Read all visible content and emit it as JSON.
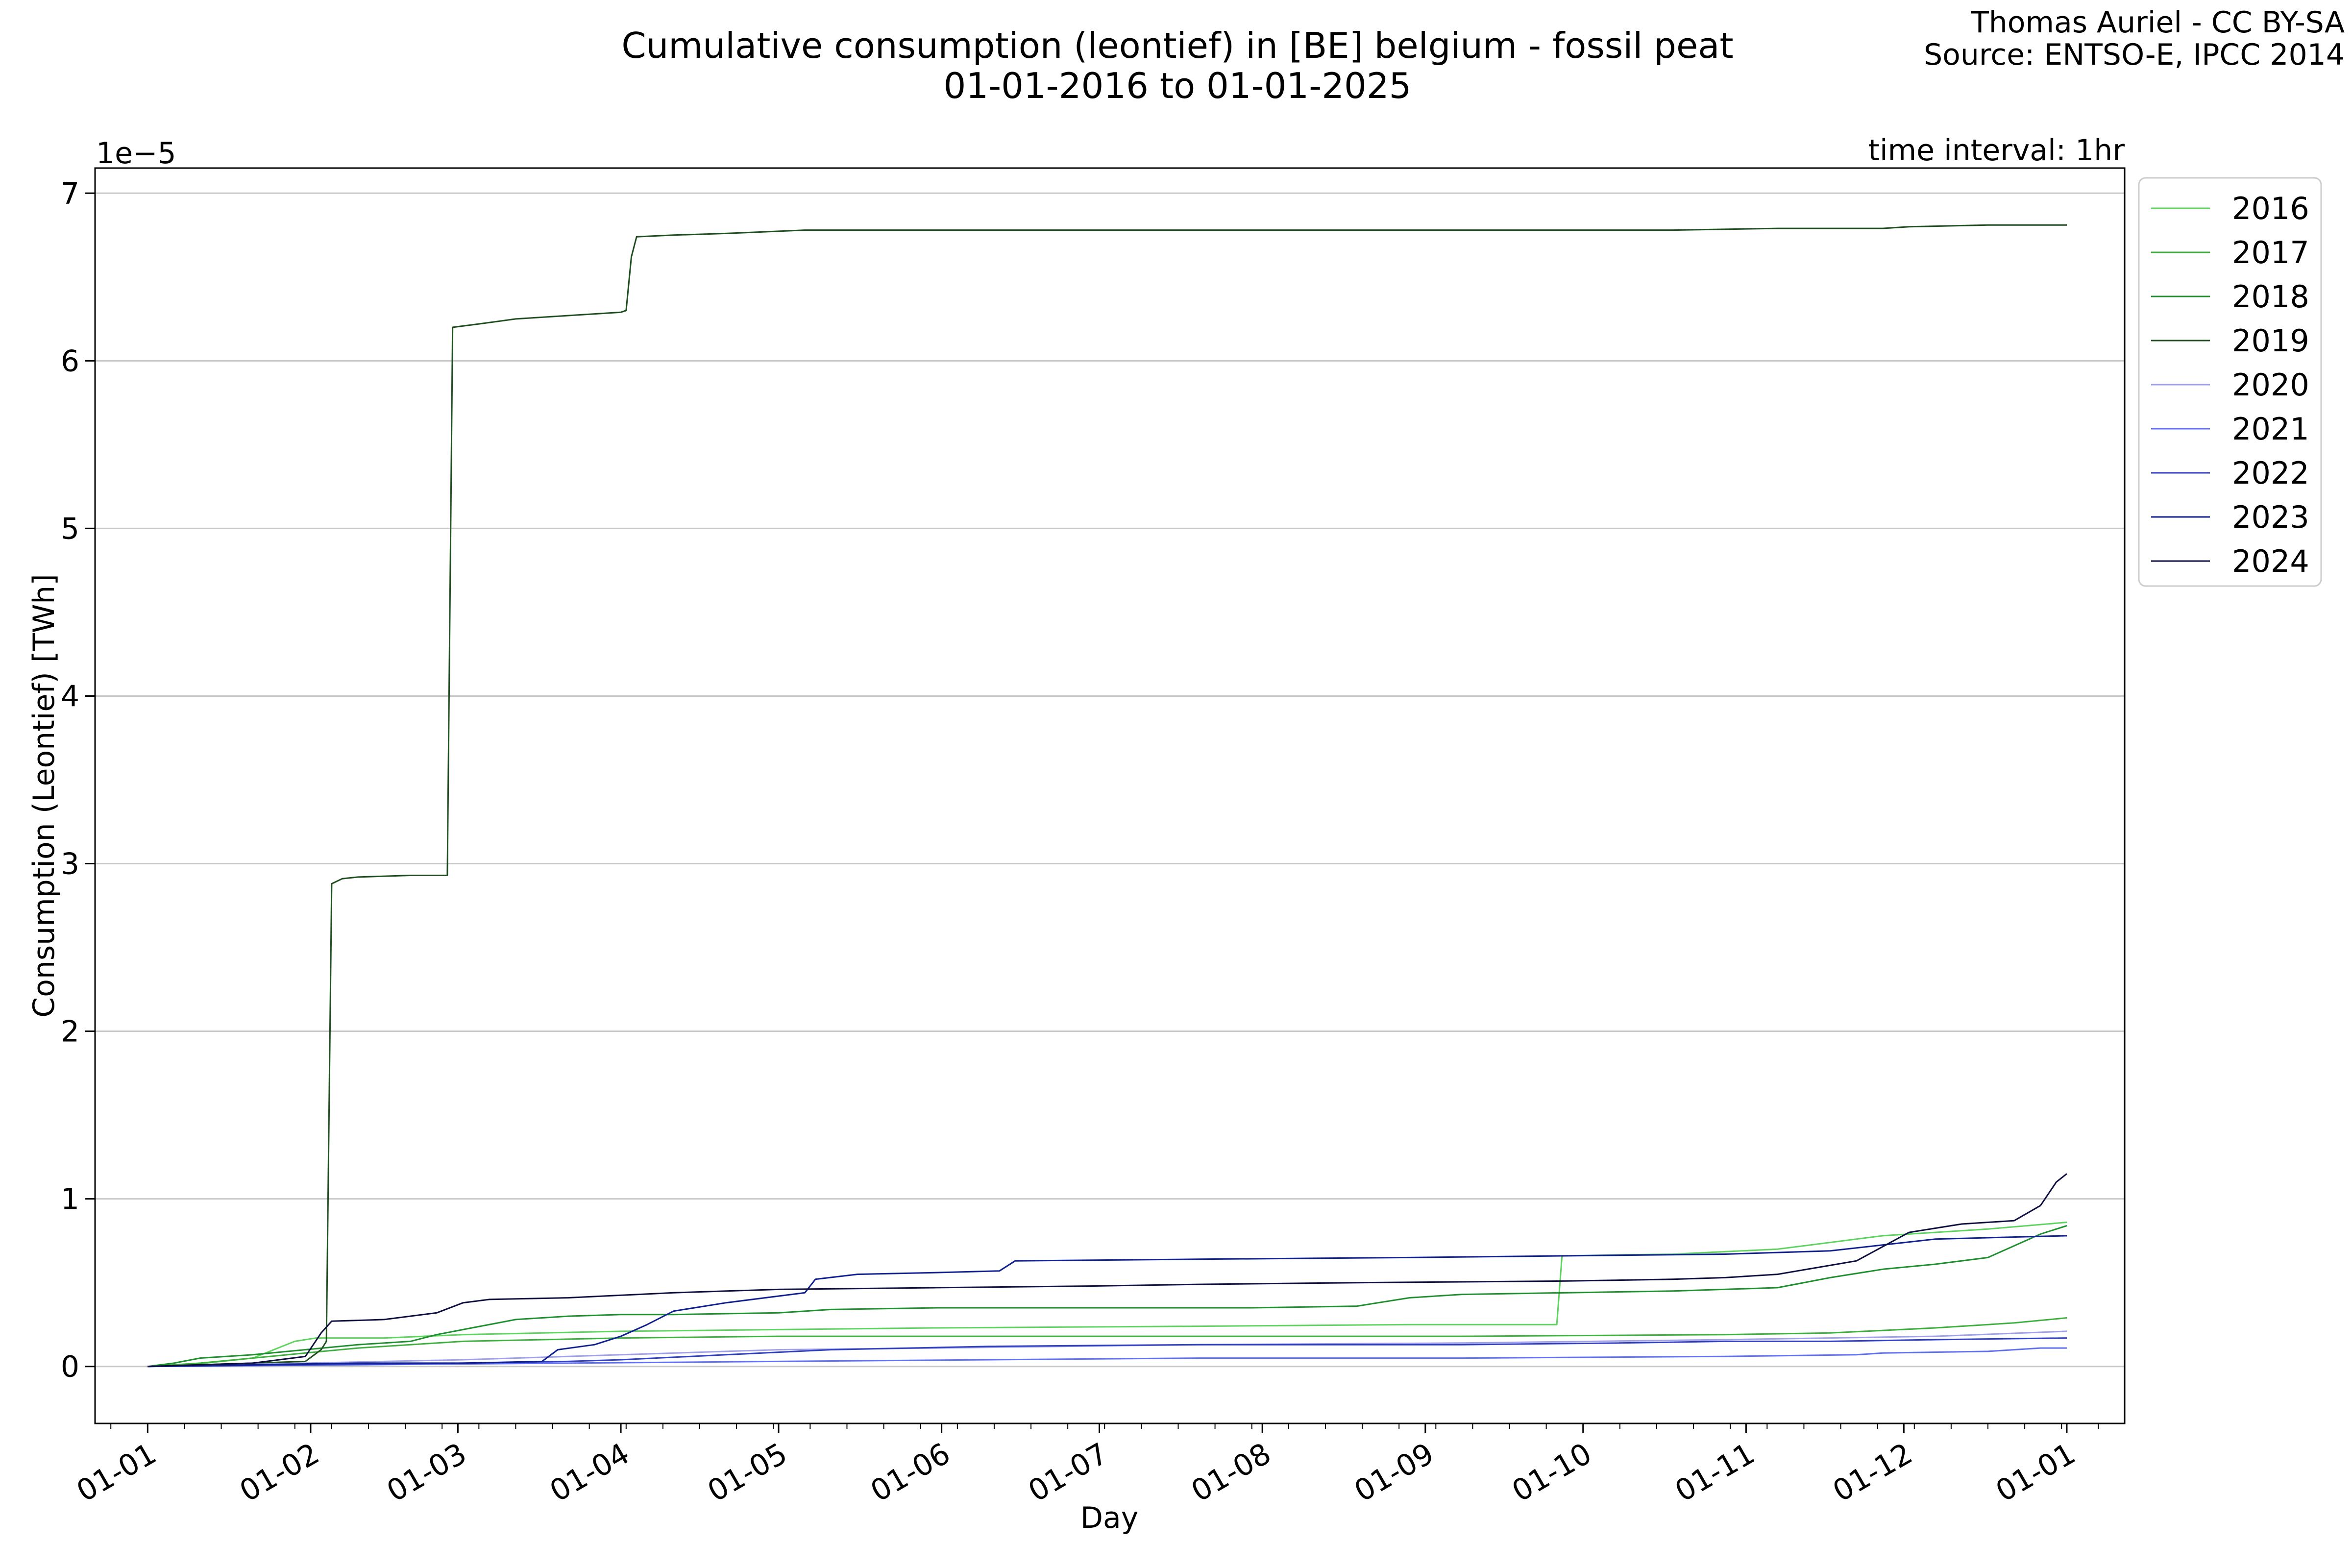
{
  "title_line1": "Cumulative consumption (leontief) in [BE] belgium - fossil peat",
  "title_line2": "01-01-2016 to 01-01-2025",
  "credit_line1": "Thomas Auriel - CC BY-SA",
  "credit_line2": "Source: ENTSO-E, IPCC 2014",
  "interval_note": "time interval: 1hr",
  "chart_data": {
    "type": "line",
    "xlabel": "Day",
    "ylabel": "Consumption (Leontief) [TWh]",
    "y_offset_text": "1e−5",
    "xlim": [
      -10,
      376
    ],
    "ylim": [
      -0.34,
      7.15
    ],
    "x_unit": "day of year",
    "grid": "horizontal",
    "legend_position": "upper right, outside axes",
    "x_ticks": [
      {
        "x": 0,
        "label": "01-01"
      },
      {
        "x": 31,
        "label": "01-02"
      },
      {
        "x": 59,
        "label": "01-03"
      },
      {
        "x": 90,
        "label": "01-04"
      },
      {
        "x": 120,
        "label": "01-05"
      },
      {
        "x": 151,
        "label": "01-06"
      },
      {
        "x": 181,
        "label": "01-07"
      },
      {
        "x": 212,
        "label": "01-08"
      },
      {
        "x": 243,
        "label": "01-09"
      },
      {
        "x": 273,
        "label": "01-10"
      },
      {
        "x": 304,
        "label": "01-11"
      },
      {
        "x": 334,
        "label": "01-12"
      },
      {
        "x": 365,
        "label": "01-01"
      }
    ],
    "y_ticks": [
      {
        "y": 0,
        "label": "0"
      },
      {
        "y": 1,
        "label": "1"
      },
      {
        "y": 2,
        "label": "2"
      },
      {
        "y": 3,
        "label": "3"
      },
      {
        "y": 4,
        "label": "4"
      },
      {
        "y": 5,
        "label": "5"
      },
      {
        "y": 6,
        "label": "6"
      },
      {
        "y": 7,
        "label": "7"
      }
    ],
    "series": [
      {
        "name": "2016",
        "color": "#5fd35f",
        "points": [
          [
            0,
            0
          ],
          [
            8,
            0.01
          ],
          [
            14,
            0.03
          ],
          [
            20,
            0.05
          ],
          [
            24,
            0.1
          ],
          [
            28,
            0.15
          ],
          [
            32,
            0.17
          ],
          [
            45,
            0.17
          ],
          [
            60,
            0.19
          ],
          [
            90,
            0.21
          ],
          [
            120,
            0.22
          ],
          [
            150,
            0.23
          ],
          [
            200,
            0.24
          ],
          [
            240,
            0.25
          ],
          [
            268,
            0.25
          ],
          [
            269,
            0.66
          ],
          [
            290,
            0.67
          ],
          [
            310,
            0.7
          ],
          [
            330,
            0.78
          ],
          [
            350,
            0.82
          ],
          [
            365,
            0.86
          ]
        ]
      },
      {
        "name": "2017",
        "color": "#3fb03f",
        "points": [
          [
            0,
            0
          ],
          [
            10,
            0.02
          ],
          [
            20,
            0.05
          ],
          [
            30,
            0.08
          ],
          [
            40,
            0.11
          ],
          [
            60,
            0.15
          ],
          [
            90,
            0.17
          ],
          [
            120,
            0.18
          ],
          [
            150,
            0.18
          ],
          [
            200,
            0.18
          ],
          [
            250,
            0.18
          ],
          [
            300,
            0.19
          ],
          [
            320,
            0.2
          ],
          [
            340,
            0.23
          ],
          [
            355,
            0.26
          ],
          [
            365,
            0.29
          ]
        ]
      },
      {
        "name": "2018",
        "color": "#1f8f2f",
        "points": [
          [
            0,
            0
          ],
          [
            5,
            0.02
          ],
          [
            10,
            0.05
          ],
          [
            20,
            0.07
          ],
          [
            30,
            0.1
          ],
          [
            40,
            0.13
          ],
          [
            50,
            0.15
          ],
          [
            55,
            0.19
          ],
          [
            60,
            0.22
          ],
          [
            70,
            0.28
          ],
          [
            80,
            0.3
          ],
          [
            90,
            0.31
          ],
          [
            100,
            0.31
          ],
          [
            120,
            0.32
          ],
          [
            130,
            0.34
          ],
          [
            150,
            0.35
          ],
          [
            180,
            0.35
          ],
          [
            210,
            0.35
          ],
          [
            230,
            0.36
          ],
          [
            240,
            0.41
          ],
          [
            250,
            0.43
          ],
          [
            270,
            0.44
          ],
          [
            290,
            0.45
          ],
          [
            310,
            0.47
          ],
          [
            320,
            0.53
          ],
          [
            330,
            0.58
          ],
          [
            340,
            0.61
          ],
          [
            350,
            0.65
          ],
          [
            360,
            0.79
          ],
          [
            365,
            0.84
          ]
        ]
      },
      {
        "name": "2019",
        "color": "#1f4f1f",
        "points": [
          [
            0,
            0
          ],
          [
            30,
            0.03
          ],
          [
            33,
            0.1
          ],
          [
            34,
            0.15
          ],
          [
            35,
            2.88
          ],
          [
            37,
            2.91
          ],
          [
            40,
            2.92
          ],
          [
            50,
            2.93
          ],
          [
            57,
            2.93
          ],
          [
            58,
            6.2
          ],
          [
            63,
            6.22
          ],
          [
            70,
            6.25
          ],
          [
            80,
            6.27
          ],
          [
            90,
            6.29
          ],
          [
            91,
            6.3
          ],
          [
            92,
            6.62
          ],
          [
            93,
            6.74
          ],
          [
            100,
            6.75
          ],
          [
            110,
            6.76
          ],
          [
            125,
            6.78
          ],
          [
            150,
            6.78
          ],
          [
            200,
            6.78
          ],
          [
            250,
            6.78
          ],
          [
            290,
            6.78
          ],
          [
            310,
            6.79
          ],
          [
            330,
            6.79
          ],
          [
            335,
            6.8
          ],
          [
            350,
            6.81
          ],
          [
            365,
            6.81
          ]
        ]
      },
      {
        "name": "2020",
        "color": "#a0a0e8",
        "points": [
          [
            0,
            0
          ],
          [
            30,
            0.02
          ],
          [
            60,
            0.04
          ],
          [
            90,
            0.07
          ],
          [
            120,
            0.1
          ],
          [
            150,
            0.11
          ],
          [
            200,
            0.13
          ],
          [
            250,
            0.14
          ],
          [
            300,
            0.16
          ],
          [
            340,
            0.18
          ],
          [
            365,
            0.21
          ]
        ]
      },
      {
        "name": "2021",
        "color": "#6070f0",
        "points": [
          [
            0,
            0
          ],
          [
            40,
            0.01
          ],
          [
            80,
            0.02
          ],
          [
            120,
            0.03
          ],
          [
            160,
            0.04
          ],
          [
            200,
            0.05
          ],
          [
            250,
            0.05
          ],
          [
            300,
            0.06
          ],
          [
            325,
            0.07
          ],
          [
            330,
            0.08
          ],
          [
            350,
            0.09
          ],
          [
            360,
            0.11
          ],
          [
            365,
            0.11
          ]
        ]
      },
      {
        "name": "2022",
        "color": "#3040c0",
        "points": [
          [
            0,
            0
          ],
          [
            30,
            0.01
          ],
          [
            60,
            0.02
          ],
          [
            80,
            0.03
          ],
          [
            90,
            0.04
          ],
          [
            110,
            0.07
          ],
          [
            130,
            0.1
          ],
          [
            160,
            0.12
          ],
          [
            200,
            0.13
          ],
          [
            250,
            0.13
          ],
          [
            280,
            0.14
          ],
          [
            300,
            0.15
          ],
          [
            320,
            0.15
          ],
          [
            340,
            0.16
          ],
          [
            365,
            0.17
          ]
        ]
      },
      {
        "name": "2023",
        "color": "#10208f",
        "points": [
          [
            0,
            0
          ],
          [
            20,
            0.01
          ],
          [
            40,
            0.02
          ],
          [
            60,
            0.02
          ],
          [
            75,
            0.03
          ],
          [
            78,
            0.1
          ],
          [
            85,
            0.13
          ],
          [
            90,
            0.18
          ],
          [
            95,
            0.25
          ],
          [
            100,
            0.33
          ],
          [
            110,
            0.38
          ],
          [
            125,
            0.44
          ],
          [
            127,
            0.52
          ],
          [
            135,
            0.55
          ],
          [
            150,
            0.56
          ],
          [
            162,
            0.57
          ],
          [
            165,
            0.63
          ],
          [
            200,
            0.64
          ],
          [
            240,
            0.65
          ],
          [
            270,
            0.66
          ],
          [
            300,
            0.67
          ],
          [
            320,
            0.69
          ],
          [
            340,
            0.76
          ],
          [
            365,
            0.78
          ]
        ]
      },
      {
        "name": "2024",
        "color": "#101040",
        "points": [
          [
            0,
            0
          ],
          [
            20,
            0.02
          ],
          [
            30,
            0.06
          ],
          [
            33,
            0.2
          ],
          [
            35,
            0.27
          ],
          [
            45,
            0.28
          ],
          [
            55,
            0.32
          ],
          [
            60,
            0.38
          ],
          [
            65,
            0.4
          ],
          [
            80,
            0.41
          ],
          [
            100,
            0.44
          ],
          [
            120,
            0.46
          ],
          [
            150,
            0.47
          ],
          [
            180,
            0.48
          ],
          [
            200,
            0.49
          ],
          [
            230,
            0.5
          ],
          [
            270,
            0.51
          ],
          [
            290,
            0.52
          ],
          [
            300,
            0.53
          ],
          [
            310,
            0.55
          ],
          [
            325,
            0.63
          ],
          [
            335,
            0.8
          ],
          [
            345,
            0.85
          ],
          [
            355,
            0.87
          ],
          [
            360,
            0.96
          ],
          [
            363,
            1.1
          ],
          [
            365,
            1.15
          ]
        ]
      }
    ]
  }
}
